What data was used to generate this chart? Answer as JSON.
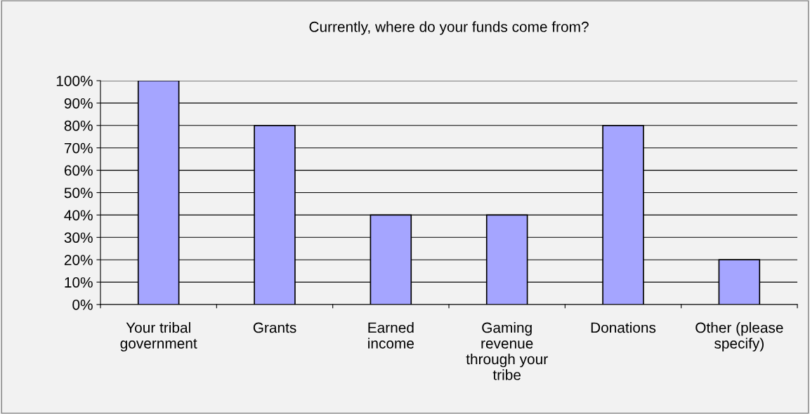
{
  "chart_data": {
    "type": "bar",
    "title": "Currently, where do your funds come from?",
    "categories": [
      "Your tribal\ngovernment",
      "Grants",
      "Earned\nincome",
      "Gaming\nrevenue\nthrough your\ntribe",
      "Donations",
      "Other (please\nspecify)"
    ],
    "values": [
      100,
      80,
      40,
      40,
      80,
      20
    ],
    "color": "#a5a5ff",
    "ylim": [
      0,
      100
    ],
    "yticks": [
      {
        "value": 0,
        "label": "0%"
      },
      {
        "value": 10,
        "label": "10%"
      },
      {
        "value": 20,
        "label": "20%"
      },
      {
        "value": 30,
        "label": "30%"
      },
      {
        "value": 40,
        "label": "40%"
      },
      {
        "value": 50,
        "label": "50%"
      },
      {
        "value": 60,
        "label": "60%"
      },
      {
        "value": 70,
        "label": "70%"
      },
      {
        "value": 80,
        "label": "80%"
      },
      {
        "value": 90,
        "label": "90%"
      },
      {
        "value": 100,
        "label": "100%"
      }
    ],
    "grid": "y",
    "legend": false
  }
}
